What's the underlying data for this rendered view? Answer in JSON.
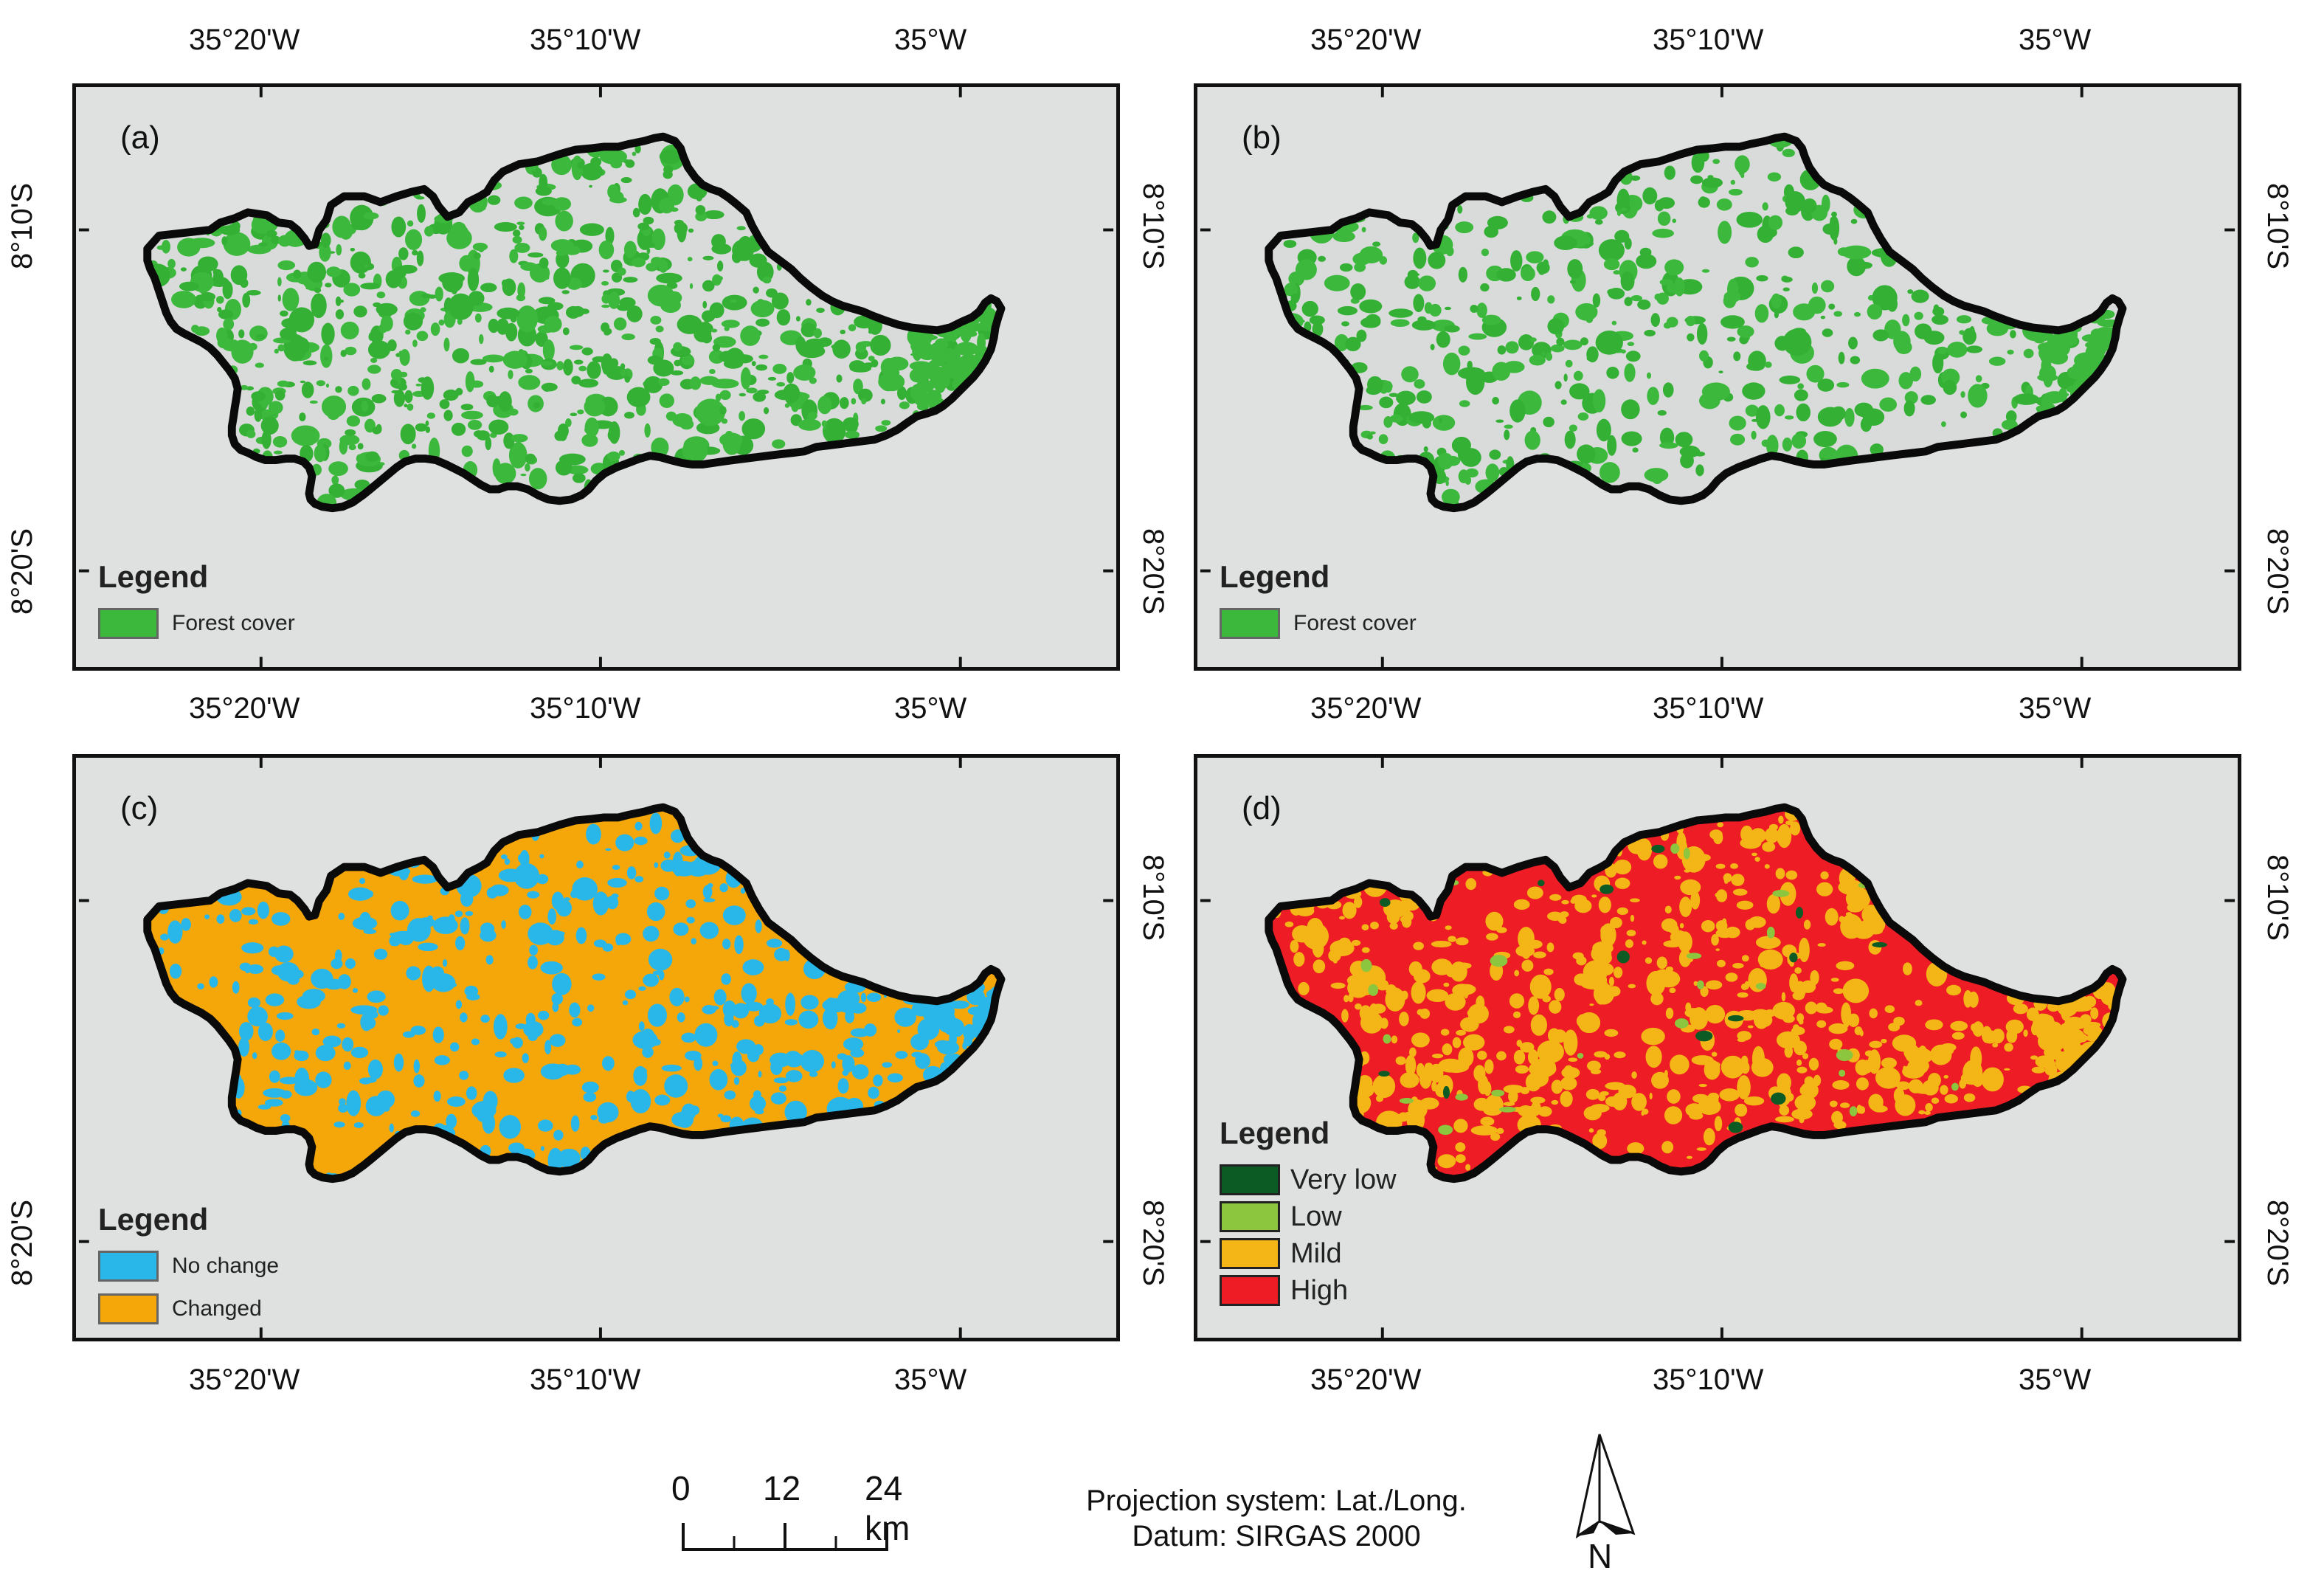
{
  "panels": [
    {
      "label": "(a)",
      "legend": {
        "title": "Legend",
        "items": [
          {
            "label": "Forest cover",
            "color": "#3cb93c"
          }
        ]
      },
      "map": {
        "fill": "#d9dbdb",
        "patch_color": "#3cb93c",
        "patch_color_2": "#34b034",
        "density": 0.55
      }
    },
    {
      "label": "(b)",
      "legend": {
        "title": "Legend",
        "items": [
          {
            "label": "Forest cover",
            "color": "#3cb93c"
          }
        ]
      },
      "map": {
        "fill": "#d9dbdb",
        "patch_color": "#3cb93c",
        "patch_color_2": "#34b034",
        "density": 0.35
      }
    },
    {
      "label": "(c)",
      "legend": {
        "title": "Legend",
        "items": [
          {
            "label": "No change",
            "color": "#29b7ea"
          },
          {
            "label": "Changed",
            "color": "#f5a70a"
          }
        ]
      },
      "map": {
        "fill": "#f5a70a",
        "patch_color": "#29b7ea",
        "patch_color_2": "#29b7ea",
        "density": 0.3
      }
    },
    {
      "label": "(d)",
      "legend": {
        "title": "Legend",
        "items": [
          {
            "label": "Very low",
            "color": "#0c5a24"
          },
          {
            "label": "Low",
            "color": "#8cc63f"
          },
          {
            "label": "Mild",
            "color": "#f4b616"
          },
          {
            "label": "High",
            "color": "#ee1c24"
          }
        ]
      },
      "map": {
        "fill": "#ee1c24",
        "patch_color": "#f4b616",
        "patch_color_2": "#f4b616",
        "density": 0.45
      }
    }
  ],
  "longitude_labels": [
    "35°20'W",
    "35°10'W",
    "35°W"
  ],
  "latitude_labels": [
    "8°10'S",
    "8°20'S"
  ],
  "scale_bar": {
    "labels": [
      "0",
      "12",
      "24 km"
    ]
  },
  "projection": {
    "line1": "Projection system: Lat./Long.",
    "line2": "Datum: SIRGAS 2000"
  },
  "north_arrow": {
    "label": "N"
  }
}
